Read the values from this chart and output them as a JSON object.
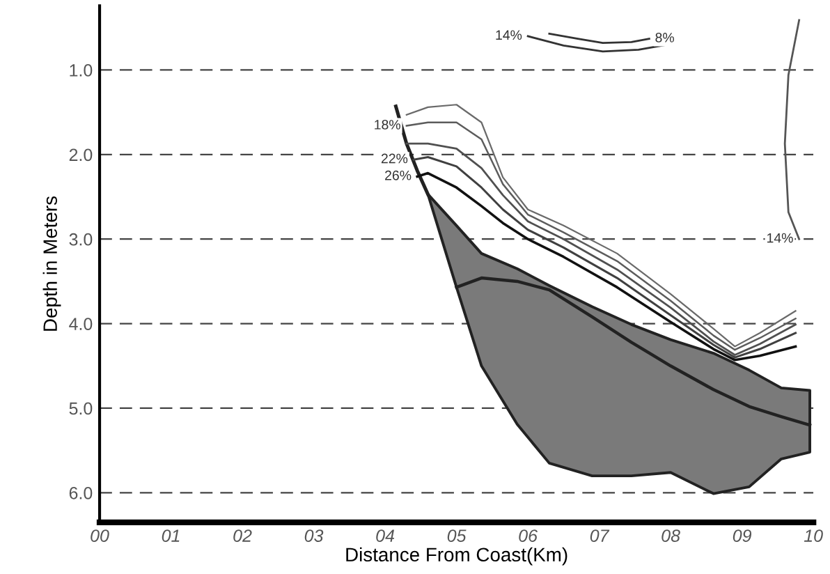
{
  "chart_data": {
    "type": "line",
    "xlabel": "Distance From Coast(Km)",
    "ylabel": "Depth in Meters",
    "xlim": [
      0,
      10
    ],
    "ylim": [
      6.35,
      0.24
    ],
    "xticks": [
      {
        "value": 0,
        "label": "00"
      },
      {
        "value": 1,
        "label": "01"
      },
      {
        "value": 2,
        "label": "02"
      },
      {
        "value": 3,
        "label": "03"
      },
      {
        "value": 4,
        "label": "04"
      },
      {
        "value": 5,
        "label": "05"
      },
      {
        "value": 6,
        "label": "06"
      },
      {
        "value": 7,
        "label": "07"
      },
      {
        "value": 8,
        "label": "08"
      },
      {
        "value": 9,
        "label": "09"
      },
      {
        "value": 10,
        "label": "10"
      }
    ],
    "yticks": [
      {
        "value": 1,
        "label": "1.0"
      },
      {
        "value": 2,
        "label": "2.0"
      },
      {
        "value": 3,
        "label": "3.0"
      },
      {
        "value": 4,
        "label": "4.0"
      },
      {
        "value": 5,
        "label": "5.0"
      },
      {
        "value": 6,
        "label": "6.0"
      }
    ],
    "grid": "y",
    "marker": "none",
    "line_style": "solid",
    "series": [
      {
        "color": "#222222",
        "x": [
          4.6,
          5.0,
          5.35,
          5.85,
          6.3,
          6.9,
          7.45,
          8.0,
          8.6,
          9.1,
          9.55,
          9.95
        ],
        "values": [
          null,
          3.57,
          3.46,
          3.5,
          3.6,
          3.92,
          4.22,
          4.5,
          4.78,
          4.98,
          5.1,
          5.2
        ],
        "lower": [
          2.47,
          2.84,
          3.17,
          3.35,
          3.55,
          3.8,
          4.01,
          4.19,
          4.35,
          4.55,
          4.76,
          4.79
        ],
        "upper": [
          2.47,
          3.57,
          4.5,
          5.19,
          5.65,
          5.8,
          5.8,
          5.76,
          6.01,
          5.93,
          5.6,
          5.52
        ]
      },
      {
        "color": "#222222",
        "x": [
          4.15,
          4.3,
          4.45,
          4.6
        ],
        "values": [
          1.43,
          1.87,
          2.19,
          2.47
        ]
      },
      {
        "color": "#6a6a6a",
        "x": [
          4.3,
          4.6,
          5.0,
          5.35,
          5.65,
          6.0,
          6.5,
          7.25,
          8.0,
          8.6,
          8.9,
          9.25,
          9.75
        ],
        "values": [
          1.53,
          1.44,
          1.41,
          1.62,
          2.27,
          2.65,
          2.84,
          3.17,
          3.65,
          4.06,
          4.27,
          4.11,
          3.85
        ]
      },
      {
        "name": "18%",
        "color": "#5c5c5c",
        "x": [
          4.3,
          4.6,
          5.0,
          5.35,
          5.65,
          6.0,
          6.5,
          7.25,
          8.0,
          8.6,
          8.9,
          9.25,
          9.75
        ],
        "values": [
          1.66,
          1.62,
          1.62,
          1.82,
          2.35,
          2.71,
          2.92,
          3.26,
          3.73,
          4.14,
          4.31,
          4.17,
          3.94
        ]
      },
      {
        "color": "#505050",
        "x": [
          4.3,
          4.6,
          5.0,
          5.35,
          5.65,
          6.0,
          6.5,
          7.25,
          8.0,
          8.6,
          8.9,
          9.25,
          9.75
        ],
        "values": [
          1.87,
          1.87,
          1.93,
          2.16,
          2.48,
          2.79,
          3.0,
          3.36,
          3.81,
          4.21,
          4.37,
          4.24,
          4.01
        ]
      },
      {
        "name": "22%",
        "color": "#404040",
        "x": [
          4.4,
          4.6,
          5.0,
          5.35,
          5.65,
          6.0,
          6.5,
          7.25,
          8.0,
          8.6,
          8.9,
          9.25,
          9.75
        ],
        "values": [
          2.06,
          2.03,
          2.14,
          2.39,
          2.65,
          2.89,
          3.1,
          3.46,
          3.9,
          4.25,
          4.4,
          4.3,
          4.11
        ]
      },
      {
        "name": "26%",
        "color": "#111111",
        "x": [
          4.45,
          4.6,
          5.0,
          5.35,
          5.65,
          6.0,
          6.5,
          7.25,
          8.0,
          8.6,
          8.9,
          9.25,
          9.75
        ],
        "values": [
          2.26,
          2.22,
          2.39,
          2.61,
          2.81,
          3.0,
          3.21,
          3.57,
          3.98,
          4.3,
          4.43,
          4.38,
          4.27
        ]
      },
      {
        "name": "14%",
        "color": "#333333",
        "x": [
          6.0,
          6.5,
          7.05,
          7.55,
          7.95
        ],
        "values": [
          0.6,
          0.71,
          0.78,
          0.76,
          0.7
        ]
      },
      {
        "name": "8%",
        "color": "#333333",
        "x": [
          7.7,
          7.45,
          7.05,
          6.7,
          6.3
        ],
        "values": [
          0.63,
          0.67,
          0.68,
          0.63,
          0.57
        ]
      },
      {
        "name": "14%",
        "color": "#555555",
        "x": [
          9.8,
          9.65,
          9.6,
          9.65,
          9.8
        ],
        "values": [
          3.0,
          2.68,
          1.87,
          1.06,
          0.41
        ]
      }
    ]
  }
}
